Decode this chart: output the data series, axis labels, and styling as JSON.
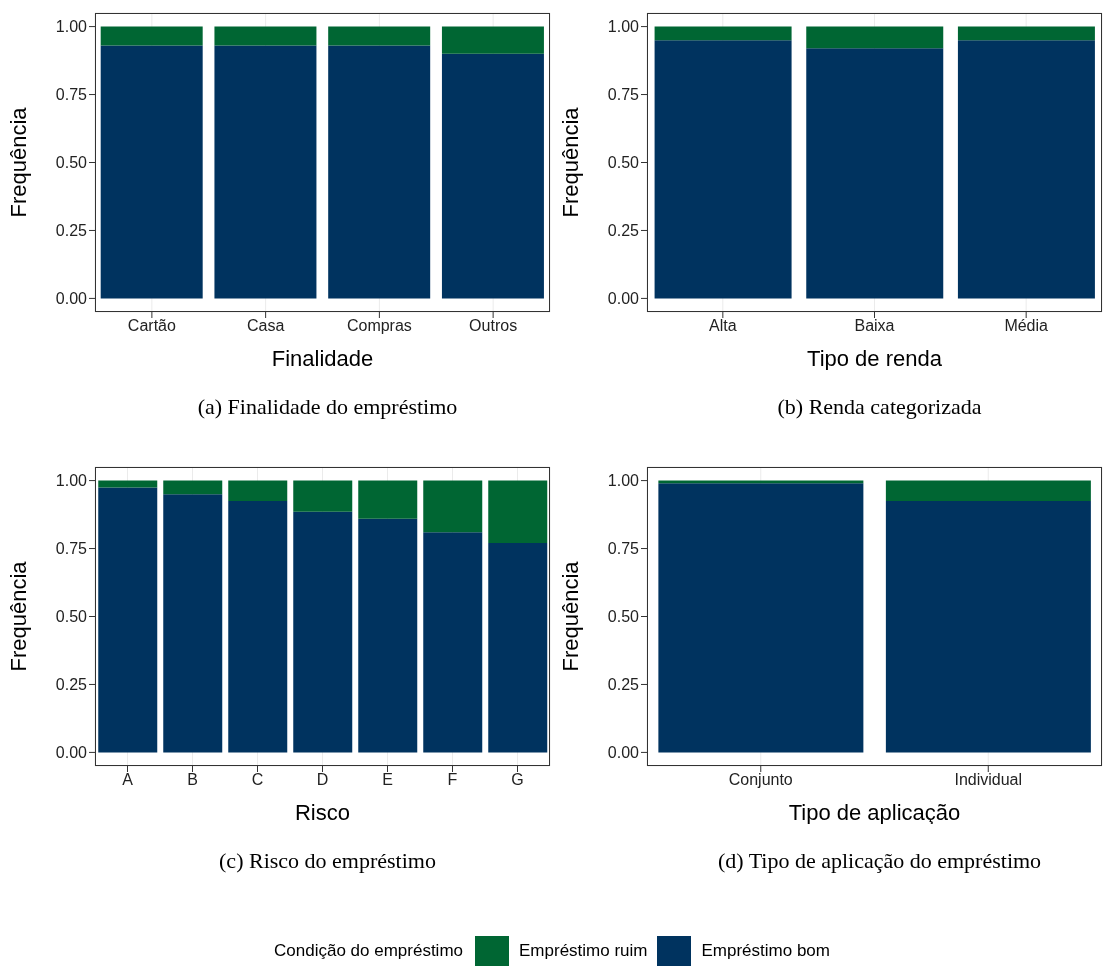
{
  "chart_data": [
    {
      "type": "bar",
      "title": "(a) Finalidade do empréstimo",
      "xlabel": "Finalidade",
      "ylabel": "Frequência",
      "categories": [
        "Cartão",
        "Casa",
        "Compras",
        "Outros"
      ],
      "stacked": true,
      "grid": true,
      "ylim": [
        -0.05,
        1.05
      ],
      "yticks": [
        {
          "value": 0,
          "label": "0.00"
        },
        {
          "value": 0.25,
          "label": "0.25"
        },
        {
          "value": 0.5,
          "label": "0.50"
        },
        {
          "value": 0.75,
          "label": "0.75"
        },
        {
          "value": 1,
          "label": "1.00"
        }
      ],
      "series": [
        {
          "color": "#00335f",
          "values": [
            0.93,
            0.93,
            0.93,
            0.9
          ]
        },
        {
          "color": "#006633",
          "values": [
            0.07,
            0.07,
            0.07,
            0.1
          ]
        }
      ]
    },
    {
      "type": "bar",
      "title": "(b) Renda categorizada",
      "xlabel": "Tipo de renda",
      "ylabel": "Frequência",
      "categories": [
        "Alta",
        "Baixa",
        "Média"
      ],
      "stacked": true,
      "grid": true,
      "ylim": [
        -0.05,
        1.05
      ],
      "yticks": [
        {
          "value": 0,
          "label": "0.00"
        },
        {
          "value": 0.25,
          "label": "0.25"
        },
        {
          "value": 0.5,
          "label": "0.50"
        },
        {
          "value": 0.75,
          "label": "0.75"
        },
        {
          "value": 1,
          "label": "1.00"
        }
      ],
      "series": [
        {
          "color": "#00335f",
          "values": [
            0.95,
            0.92,
            0.95
          ]
        },
        {
          "color": "#006633",
          "values": [
            0.05,
            0.08,
            0.05
          ]
        }
      ]
    },
    {
      "type": "bar",
      "title": "(c) Risco do empréstimo",
      "xlabel": "Risco",
      "ylabel": "Frequência",
      "categories": [
        "A",
        "B",
        "C",
        "D",
        "E",
        "F",
        "G"
      ],
      "stacked": true,
      "grid": true,
      "ylim": [
        -0.05,
        1.05
      ],
      "yticks": [
        {
          "value": 0,
          "label": "0.00"
        },
        {
          "value": 0.25,
          "label": "0.25"
        },
        {
          "value": 0.5,
          "label": "0.50"
        },
        {
          "value": 0.75,
          "label": "0.75"
        },
        {
          "value": 1,
          "label": "1.00"
        }
      ],
      "series": [
        {
          "color": "#00335f",
          "values": [
            0.975,
            0.95,
            0.925,
            0.885,
            0.86,
            0.81,
            0.77
          ]
        },
        {
          "color": "#006633",
          "values": [
            0.025,
            0.05,
            0.075,
            0.115,
            0.14,
            0.19,
            0.23
          ]
        }
      ]
    },
    {
      "type": "bar",
      "title": "(d) Tipo de aplicação do empréstimo",
      "xlabel": "Tipo de aplicação",
      "ylabel": "Frequência",
      "categories": [
        "Conjunto",
        "Individual"
      ],
      "stacked": true,
      "grid": true,
      "ylim": [
        -0.05,
        1.05
      ],
      "yticks": [
        {
          "value": 0,
          "label": "0.00"
        },
        {
          "value": 0.25,
          "label": "0.25"
        },
        {
          "value": 0.5,
          "label": "0.50"
        },
        {
          "value": 0.75,
          "label": "0.75"
        },
        {
          "value": 1,
          "label": "1.00"
        }
      ],
      "legend": "bottom",
      "legend_title": "Condição do empréstimo",
      "series": [
        {
          "name": "Empréstimo bom",
          "color": "#00335f",
          "values": [
            0.99,
            0.925
          ]
        },
        {
          "name": "Empréstimo ruim",
          "color": "#006633",
          "values": [
            0.01,
            0.075
          ]
        }
      ]
    }
  ]
}
